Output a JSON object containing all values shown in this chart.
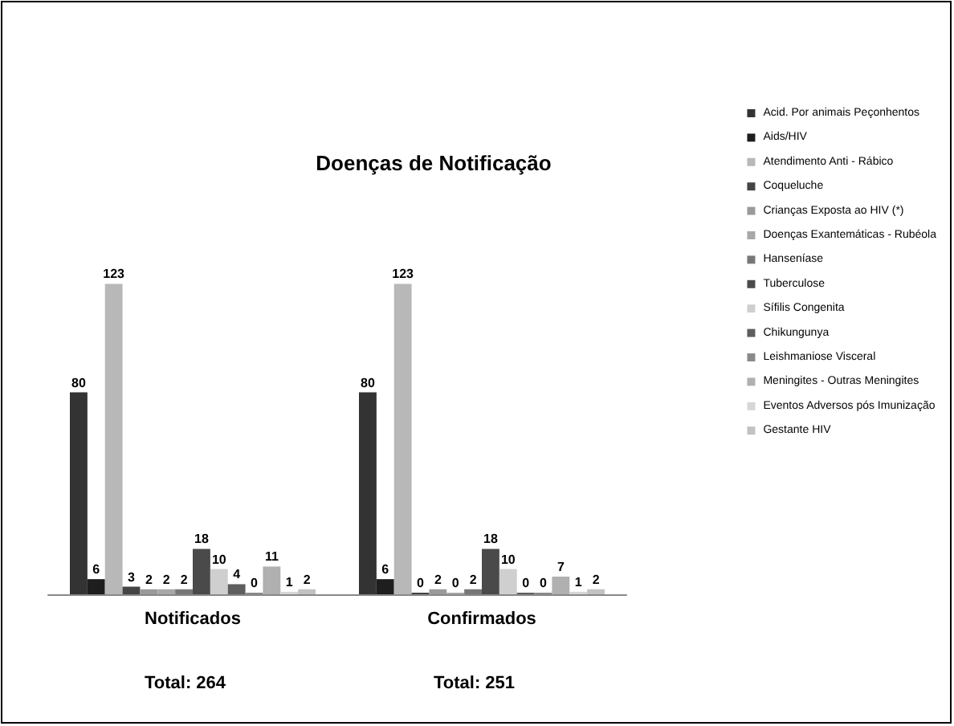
{
  "chart_data": {
    "type": "bar",
    "title": "Doenças de Notificação",
    "categories": [
      "Notificados",
      "Confirmados"
    ],
    "series": [
      {
        "name": "Acid. Por animais Peçonhentos",
        "color": "#333333",
        "values": [
          80,
          80
        ]
      },
      {
        "name": "Aids/HIV",
        "color": "#1e1e1e",
        "values": [
          6,
          6
        ]
      },
      {
        "name": "Atendimento Anti - Rábico",
        "color": "#b8b8b8",
        "values": [
          123,
          123
        ]
      },
      {
        "name": "Coqueluche",
        "color": "#444444",
        "values": [
          3,
          0
        ]
      },
      {
        "name": "Crianças Exposta ao HIV (*)",
        "color": "#9a9a9a",
        "values": [
          2,
          2
        ]
      },
      {
        "name": "Doenças Exantemáticas - Rubéola",
        "color": "#a8a8a8",
        "values": [
          2,
          0
        ]
      },
      {
        "name": "Hanseníase",
        "color": "#777777",
        "values": [
          2,
          2
        ]
      },
      {
        "name": "Tuberculose",
        "color": "#4a4a4a",
        "values": [
          18,
          18
        ]
      },
      {
        "name": "Sífilis Congenita",
        "color": "#cfcfcf",
        "values": [
          10,
          10
        ]
      },
      {
        "name": "Chikungunya",
        "color": "#5e5e5e",
        "values": [
          4,
          0
        ]
      },
      {
        "name": "Leishmaniose Visceral",
        "color": "#8a8a8a",
        "values": [
          0,
          0
        ]
      },
      {
        "name": "Meningites - Outras Meningites",
        "color": "#b0b0b0",
        "values": [
          11,
          7
        ]
      },
      {
        "name": "Eventos Adversos pós Imunização",
        "color": "#d6d6d6",
        "values": [
          1,
          1
        ]
      },
      {
        "name": "Gestante HIV",
        "color": "#c2c2c2",
        "values": [
          2,
          2
        ]
      }
    ],
    "data_labels": true,
    "legend": "right",
    "tick_labels": "x",
    "annotations": [
      "Total: 264",
      "Total: 251"
    ]
  }
}
